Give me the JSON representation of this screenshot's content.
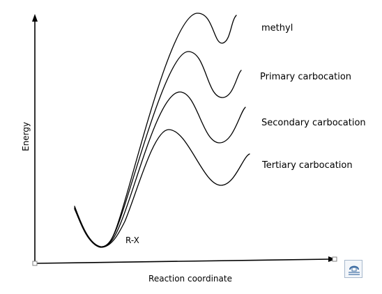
{
  "diagram": {
    "y_axis_label": "Energy",
    "x_axis_label": "Reaction coordinate",
    "start_label": "R-X",
    "curves": [
      {
        "label": "methyl"
      },
      {
        "label": "Primary carbocation"
      },
      {
        "label": "Secondary carbocation"
      },
      {
        "label": "Tertiary carbocation"
      }
    ]
  },
  "icons": {
    "layout_options": "layout-options-icon"
  }
}
